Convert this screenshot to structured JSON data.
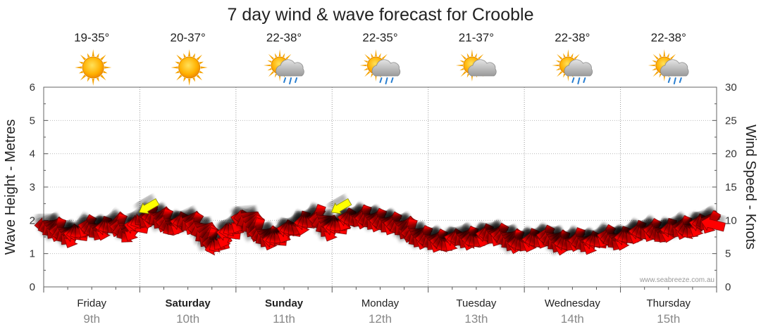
{
  "chart_data": {
    "type": "line",
    "title": "7 day wind & wave forecast for Crooble",
    "ylabel_left": "Wave Height - Metres",
    "ylabel_right": "Wind Speed - Knots",
    "ylim_left": [
      0,
      6
    ],
    "ylim_right": [
      0,
      30
    ],
    "yticks_left": [
      "0",
      "1",
      "2",
      "3",
      "4",
      "5",
      "6"
    ],
    "yticks_right": [
      "0",
      "5",
      "10",
      "15",
      "20",
      "25",
      "30"
    ],
    "grid": true,
    "credit": "www.seabreeze.com.au",
    "days": [
      {
        "name": "Friday",
        "date": "9th",
        "bold": false,
        "temp": "19-35°",
        "icon": "sun-icon"
      },
      {
        "name": "Saturday",
        "date": "10th",
        "bold": true,
        "temp": "20-37°",
        "icon": "sun-icon"
      },
      {
        "name": "Sunday",
        "date": "11th",
        "bold": true,
        "temp": "22-38°",
        "icon": "sun-cloud-rain-icon"
      },
      {
        "name": "Monday",
        "date": "12th",
        "bold": false,
        "temp": "22-35°",
        "icon": "sun-cloud-rain-icon"
      },
      {
        "name": "Tuesday",
        "date": "13th",
        "bold": false,
        "temp": "21-37°",
        "icon": "sun-cloud-icon"
      },
      {
        "name": "Wednesday",
        "date": "14th",
        "bold": false,
        "temp": "22-38°",
        "icon": "sun-cloud-rain-icon"
      },
      {
        "name": "Thursday",
        "date": "15th",
        "bold": false,
        "temp": "22-38°",
        "icon": "sun-cloud-rain-icon"
      }
    ],
    "series": [
      {
        "name": "Wind Speed",
        "unit": "knots",
        "x_days": [
          0,
          0.15,
          0.3,
          0.45,
          0.6,
          0.75,
          0.9,
          1.05,
          1.2,
          1.35,
          1.5,
          1.65,
          1.8,
          1.95,
          2.1,
          2.25,
          2.4,
          2.55,
          2.7,
          2.85,
          3.0,
          3.15,
          3.3,
          3.45,
          3.6,
          3.75,
          3.9,
          4.05,
          4.2,
          4.35,
          4.5,
          4.65,
          4.8,
          4.95,
          5.1,
          5.25,
          5.4,
          5.55,
          5.7,
          5.85,
          6.0,
          6.15,
          6.3,
          6.45,
          6.6,
          6.75,
          6.9,
          7.0
        ],
        "values": [
          9.5,
          8.5,
          7.5,
          9.0,
          8.5,
          9.5,
          8.0,
          10.5,
          10.5,
          9.0,
          10.0,
          8.5,
          6.0,
          8.5,
          10.5,
          8.0,
          7.0,
          8.5,
          9.5,
          10.5,
          8.5,
          10.0,
          10.5,
          10.0,
          9.5,
          9.0,
          7.5,
          7.0,
          6.5,
          7.5,
          7.0,
          8.0,
          7.5,
          6.5,
          7.0,
          7.5,
          6.5,
          7.0,
          6.5,
          7.5,
          7.0,
          8.0,
          8.5,
          8.0,
          9.0,
          8.5,
          10.0,
          9.0
        ]
      },
      {
        "name": "Wave Height",
        "unit": "metres",
        "x_days": [
          1.0,
          3.0
        ],
        "values": [
          2.4,
          2.4
        ]
      }
    ]
  }
}
